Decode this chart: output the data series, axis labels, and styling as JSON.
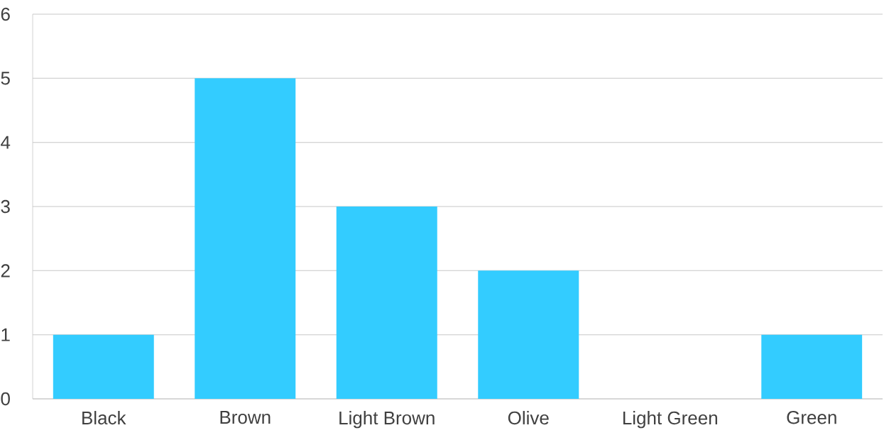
{
  "chart_data": {
    "type": "bar",
    "categories": [
      "Black",
      "Brown",
      "Light Brown",
      "Olive",
      "Light Green",
      "Green"
    ],
    "values": [
      1,
      5,
      3,
      2,
      0,
      1
    ],
    "color": "#33ccff",
    "ylim": [
      0,
      6
    ],
    "yticks": [
      0,
      1,
      2,
      3,
      4,
      5,
      6
    ],
    "grid": "y"
  }
}
